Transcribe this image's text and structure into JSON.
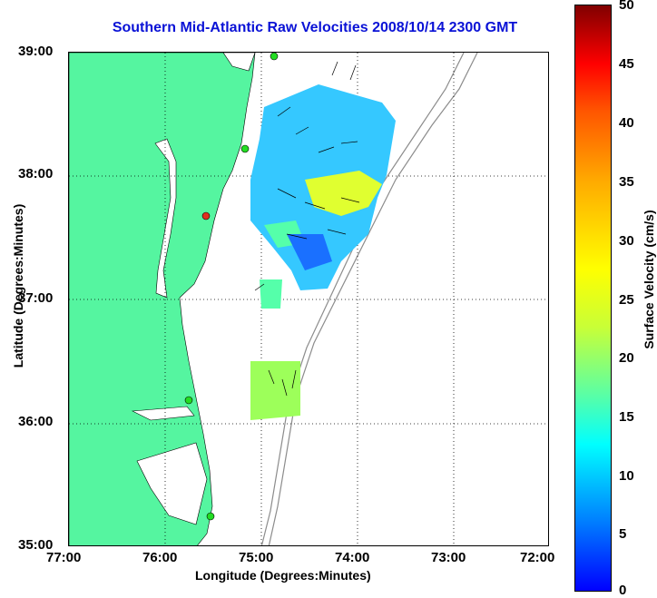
{
  "title": "Southern Mid-Atlantic Raw Velocities 2008/10/14 2300 GMT",
  "x_axis": {
    "label": "Longitude (Degrees:Minutes)",
    "ticks": [
      "77:00",
      "76:00",
      "75:00",
      "74:00",
      "73:00",
      "72:00"
    ]
  },
  "y_axis": {
    "label": "Latitude (Degrees:Minutes)",
    "ticks": [
      "39:00",
      "38:00",
      "37:00",
      "36:00",
      "35:00"
    ]
  },
  "colorbar": {
    "label": "Surface Velocity (cm/s)",
    "ticks": [
      "50",
      "45",
      "40",
      "35",
      "30",
      "25",
      "20",
      "15",
      "10",
      "5",
      "0"
    ]
  },
  "colors": {
    "land": "#55f5a0",
    "title": "#0a12d6",
    "bathymetry": "#8c8c8c",
    "station": "#22dd22",
    "station_alert": "#e03020"
  }
}
